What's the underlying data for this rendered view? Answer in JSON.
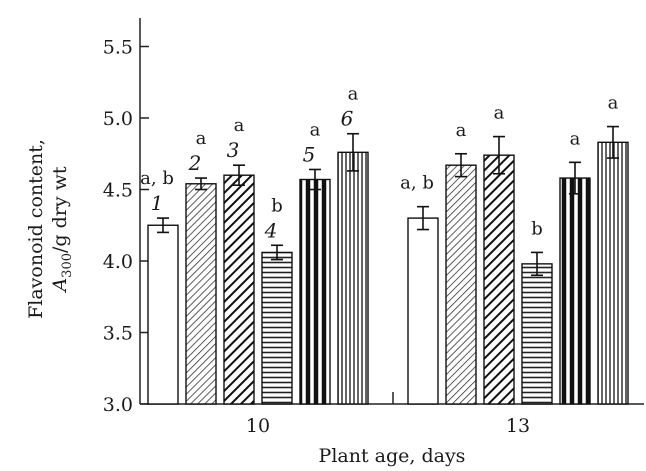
{
  "chart_data": {
    "type": "bar",
    "xlabel": "Plant age, days",
    "ylabel_line1": "Flavonoid content,",
    "ylabel_line2_main": "A",
    "ylabel_line2_sub": "300",
    "ylabel_line2_rest": "/g dry wt",
    "ylim": [
      3.0,
      5.7
    ],
    "yticks": [
      "3.0",
      "3.5",
      "4.0",
      "4.5",
      "5.0",
      "5.5"
    ],
    "categories": [
      "10",
      "13"
    ],
    "grid": false,
    "groups": [
      {
        "category": "10",
        "bars": [
          {
            "number": "1",
            "value": 4.25,
            "error": 0.05,
            "sig": "a, b",
            "pattern": "white"
          },
          {
            "number": "2",
            "value": 4.54,
            "error": 0.04,
            "sig": "a",
            "pattern": "diag-thin"
          },
          {
            "number": "3",
            "value": 4.6,
            "error": 0.07,
            "sig": "a",
            "pattern": "diag-thick"
          },
          {
            "number": "4",
            "value": 4.06,
            "error": 0.05,
            "sig": "b",
            "pattern": "horizontal"
          },
          {
            "number": "5",
            "value": 4.57,
            "error": 0.07,
            "sig": "a",
            "pattern": "vertical-thick"
          },
          {
            "number": "6",
            "value": 4.76,
            "error": 0.13,
            "sig": "a",
            "pattern": "vertical-thin"
          }
        ]
      },
      {
        "category": "13",
        "bars": [
          {
            "value": 4.3,
            "error": 0.08,
            "sig": "a, b",
            "pattern": "white"
          },
          {
            "value": 4.67,
            "error": 0.08,
            "sig": "a",
            "pattern": "diag-thin"
          },
          {
            "value": 4.74,
            "error": 0.13,
            "sig": "a",
            "pattern": "diag-thick"
          },
          {
            "value": 3.98,
            "error": 0.08,
            "sig": "b",
            "pattern": "horizontal"
          },
          {
            "value": 4.58,
            "error": 0.11,
            "sig": "a",
            "pattern": "vertical-thick"
          },
          {
            "value": 4.83,
            "error": 0.11,
            "sig": "a",
            "pattern": "vertical-thin"
          }
        ]
      }
    ]
  }
}
